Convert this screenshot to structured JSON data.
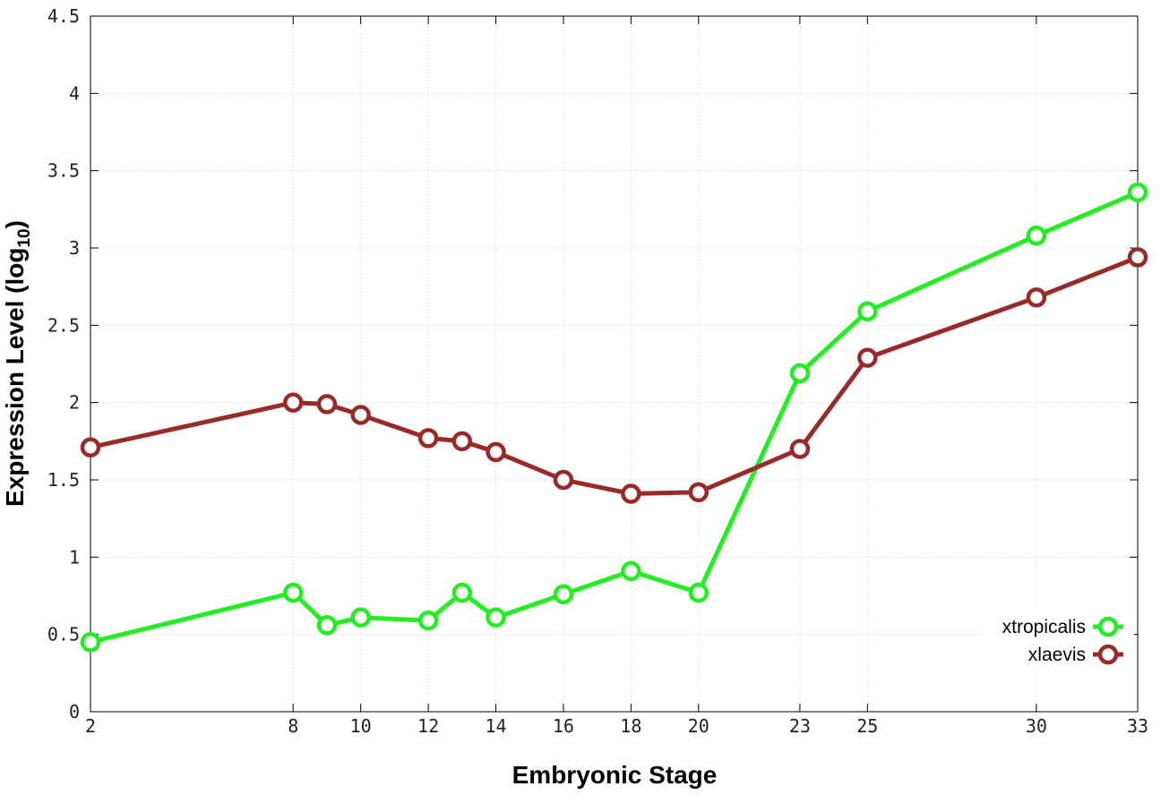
{
  "chart_data": {
    "type": "line",
    "xlabel": "Embryonic Stage",
    "ylabel_main": "Expression Level (log",
    "ylabel_sub": "10",
    "ylabel_close": ")",
    "x": [
      2,
      8,
      9,
      10,
      12,
      13,
      14,
      16,
      18,
      20,
      23,
      25,
      30,
      33
    ],
    "x_ticks": [
      2,
      8,
      10,
      12,
      14,
      16,
      18,
      20,
      23,
      25,
      30,
      33
    ],
    "y_ticks": [
      "0",
      "0.5",
      "1",
      "1.5",
      "2",
      "2.5",
      "3",
      "3.5",
      "4",
      "4.5"
    ],
    "xlim": [
      2,
      33
    ],
    "ylim": [
      0,
      4.5
    ],
    "grid": true,
    "legend_position": "bottom-right",
    "series": [
      {
        "name": "xtropicalis",
        "color": "#22ee22",
        "values": [
          0.45,
          0.77,
          0.56,
          0.61,
          0.59,
          0.77,
          0.61,
          0.76,
          0.91,
          0.77,
          2.19,
          2.59,
          3.08,
          3.36
        ]
      },
      {
        "name": "xlaevis",
        "color": "#992a2a",
        "values": [
          1.71,
          2.0,
          1.99,
          1.92,
          1.77,
          1.75,
          1.68,
          1.5,
          1.41,
          1.42,
          1.7,
          2.29,
          2.68,
          2.94
        ]
      }
    ]
  }
}
